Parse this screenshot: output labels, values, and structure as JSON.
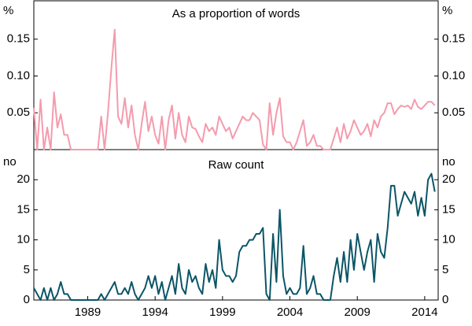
{
  "chart_data": [
    {
      "type": "line",
      "title": "As a proportion of words",
      "unit": "%",
      "x": [
        1985,
        1985.25,
        1985.5,
        1985.75,
        1986,
        1986.25,
        1986.5,
        1986.75,
        1987,
        1987.25,
        1987.5,
        1987.75,
        1988,
        1988.25,
        1988.5,
        1988.75,
        1989,
        1989.25,
        1989.5,
        1989.75,
        1990,
        1990.25,
        1990.5,
        1990.75,
        1991,
        1991.25,
        1991.5,
        1991.75,
        1992,
        1992.25,
        1992.5,
        1992.75,
        1993,
        1993.25,
        1993.5,
        1993.75,
        1994,
        1994.25,
        1994.5,
        1994.75,
        1995,
        1995.25,
        1995.5,
        1995.75,
        1996,
        1996.25,
        1996.5,
        1996.75,
        1997,
        1997.25,
        1997.5,
        1997.75,
        1998,
        1998.25,
        1998.5,
        1998.75,
        1999,
        1999.25,
        1999.5,
        1999.75,
        2000,
        2000.25,
        2000.5,
        2000.75,
        2001,
        2001.25,
        2001.5,
        2001.75,
        2002,
        2002.25,
        2002.5,
        2002.75,
        2003,
        2003.25,
        2003.5,
        2003.75,
        2004,
        2004.25,
        2004.5,
        2004.75,
        2005,
        2005.25,
        2005.5,
        2005.75,
        2006,
        2006.25,
        2006.5,
        2006.75,
        2007,
        2007.25,
        2007.5,
        2007.75,
        2008,
        2008.25,
        2008.5,
        2008.75,
        2009,
        2009.25,
        2009.5,
        2009.75,
        2010,
        2010.25,
        2010.5,
        2010.75,
        2011,
        2011.25,
        2011.5,
        2011.75,
        2012,
        2012.25,
        2012.5,
        2012.75,
        2013,
        2013.25,
        2013.5,
        2013.75,
        2014,
        2014.25,
        2014.5,
        2014.75
      ],
      "series": [
        {
          "color": "#f49bad",
          "values": [
            0.057,
            0,
            0.068,
            0,
            0.03,
            0,
            0.078,
            0.03,
            0.048,
            0.02,
            0.02,
            0,
            0,
            0,
            0,
            0,
            0,
            0,
            0,
            0,
            0.045,
            0,
            0.05,
            0.11,
            0.163,
            0.045,
            0.035,
            0.07,
            0.03,
            0.06,
            0.02,
            0,
            0.035,
            0.065,
            0.025,
            0.045,
            0.02,
            0.008,
            0.045,
            0,
            0.04,
            0.06,
            0.015,
            0.05,
            0.02,
            0.01,
            0.045,
            0.03,
            0.028,
            0.018,
            0.01,
            0.035,
            0.025,
            0.03,
            0.02,
            0.045,
            0.035,
            0.025,
            0.03,
            0.015,
            0.025,
            0.035,
            0.045,
            0.04,
            0.04,
            0.05,
            0.045,
            0.04,
            0.007,
            0,
            0.063,
            0.02,
            0.05,
            0.07,
            0.018,
            0.01,
            0.01,
            0,
            0.01,
            0.025,
            0.04,
            0.005,
            0.01,
            0.02,
            0.005,
            0.005,
            0,
            0,
            0,
            0.015,
            0.03,
            0.01,
            0.035,
            0.015,
            0.025,
            0.04,
            0.03,
            0.02,
            0.025,
            0.035,
            0.018,
            0.04,
            0.03,
            0.045,
            0.05,
            0.063,
            0.063,
            0.048,
            0.055,
            0.06,
            0.058,
            0.06,
            0.055,
            0.068,
            0.058,
            0.055,
            0.06,
            0.065,
            0.065,
            0.06
          ]
        }
      ],
      "xlim": [
        1985,
        2015
      ],
      "ylim": [
        0,
        0.2
      ],
      "yticks": [
        0.05,
        {
          "value": 0.1,
          "label": "0.10"
        },
        0.15
      ]
    },
    {
      "type": "line",
      "title": "Raw count",
      "unit": "no",
      "x": [
        1985,
        1985.25,
        1985.5,
        1985.75,
        1986,
        1986.25,
        1986.5,
        1986.75,
        1987,
        1987.25,
        1987.5,
        1987.75,
        1988,
        1988.25,
        1988.5,
        1988.75,
        1989,
        1989.25,
        1989.5,
        1989.75,
        1990,
        1990.25,
        1990.5,
        1990.75,
        1991,
        1991.25,
        1991.5,
        1991.75,
        1992,
        1992.25,
        1992.5,
        1992.75,
        1993,
        1993.25,
        1993.5,
        1993.75,
        1994,
        1994.25,
        1994.5,
        1994.75,
        1995,
        1995.25,
        1995.5,
        1995.75,
        1996,
        1996.25,
        1996.5,
        1996.75,
        1997,
        1997.25,
        1997.5,
        1997.75,
        1998,
        1998.25,
        1998.5,
        1998.75,
        1999,
        1999.25,
        1999.5,
        1999.75,
        2000,
        2000.25,
        2000.5,
        2000.75,
        2001,
        2001.25,
        2001.5,
        2001.75,
        2002,
        2002.25,
        2002.5,
        2002.75,
        2003,
        2003.25,
        2003.5,
        2003.75,
        2004,
        2004.25,
        2004.5,
        2004.75,
        2005,
        2005.25,
        2005.5,
        2005.75,
        2006,
        2006.25,
        2006.5,
        2006.75,
        2007,
        2007.25,
        2007.5,
        2007.75,
        2008,
        2008.25,
        2008.5,
        2008.75,
        2009,
        2009.25,
        2009.5,
        2009.75,
        2010,
        2010.25,
        2010.5,
        2010.75,
        2011,
        2011.25,
        2011.5,
        2011.75,
        2012,
        2012.25,
        2012.5,
        2012.75,
        2013,
        2013.25,
        2013.5,
        2013.75,
        2014,
        2014.25,
        2014.5,
        2014.75
      ],
      "series": [
        {
          "color": "#0b5566",
          "values": [
            2,
            1,
            0,
            2,
            0,
            2,
            0,
            1,
            3,
            1,
            1,
            0,
            0,
            0,
            0,
            0,
            0,
            0,
            0,
            0,
            1,
            0,
            1,
            2,
            3,
            1,
            1,
            2,
            1,
            3,
            1,
            0,
            1,
            2,
            4,
            2,
            4,
            1,
            3,
            0,
            2,
            4,
            1,
            6,
            2,
            1,
            5,
            3,
            4,
            2,
            1,
            6,
            3,
            5,
            2,
            10,
            5,
            4,
            4,
            3,
            4,
            8,
            9,
            9,
            10,
            10,
            11,
            11,
            12,
            1,
            0,
            11,
            3,
            15,
            4,
            1,
            2,
            1,
            1,
            2,
            9,
            1,
            2,
            4,
            1,
            1,
            0,
            0,
            0,
            4,
            7,
            3,
            8,
            3,
            10,
            5,
            11,
            8,
            5,
            8,
            10,
            3,
            11,
            8,
            7,
            12,
            19,
            19,
            14,
            16,
            18,
            17,
            16,
            18,
            14,
            17,
            14,
            20,
            21,
            18
          ]
        }
      ],
      "xlim": [
        1985,
        2015
      ],
      "ylim": [
        0,
        25
      ],
      "yticks": [
        0,
        5,
        10,
        15,
        20
      ],
      "xticks": [
        1989,
        1994,
        1999,
        2004,
        2009,
        2014
      ]
    }
  ]
}
